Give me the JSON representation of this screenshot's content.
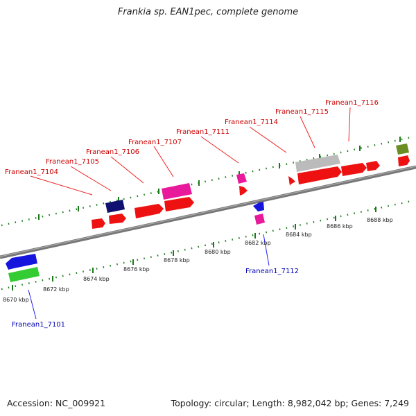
{
  "title": "Frankia sp. EAN1pec, complete genome",
  "accession": "Accession: NC_009921",
  "summary": "Topology: circular; Length: 8,982,042 bp; Genes: 7,249",
  "colors": {
    "backbone": "#7a7a7a",
    "tick": "#1a7a1a",
    "forward_label": "#cc0000",
    "reverse_label": "#0000b0",
    "red_gene": "#ee1111",
    "magenta_gene": "#e8199a",
    "navy_gene": "#101070",
    "grey_gene": "#bbbbbb",
    "olive_gene": "#6b8e23",
    "blue_gene": "#1515dd",
    "green_gene": "#33cc33"
  },
  "kbp_labels": [
    "8670 kbp",
    "8672 kbp",
    "8674 kbp",
    "8676 kbp",
    "8678 kbp",
    "8680 kbp",
    "8682 kbp",
    "8684 kbp",
    "8686 kbp",
    "8688 kbp"
  ],
  "forward_labels": [
    "Franean1_7104",
    "Franean1_7105",
    "Franean1_7106",
    "Franean1_7107",
    "Franean1_7111",
    "Franean1_7114",
    "Franean1_7115",
    "Franean1_7116"
  ],
  "reverse_labels": [
    "Franean1_7112",
    "Franean1_7101"
  ]
}
